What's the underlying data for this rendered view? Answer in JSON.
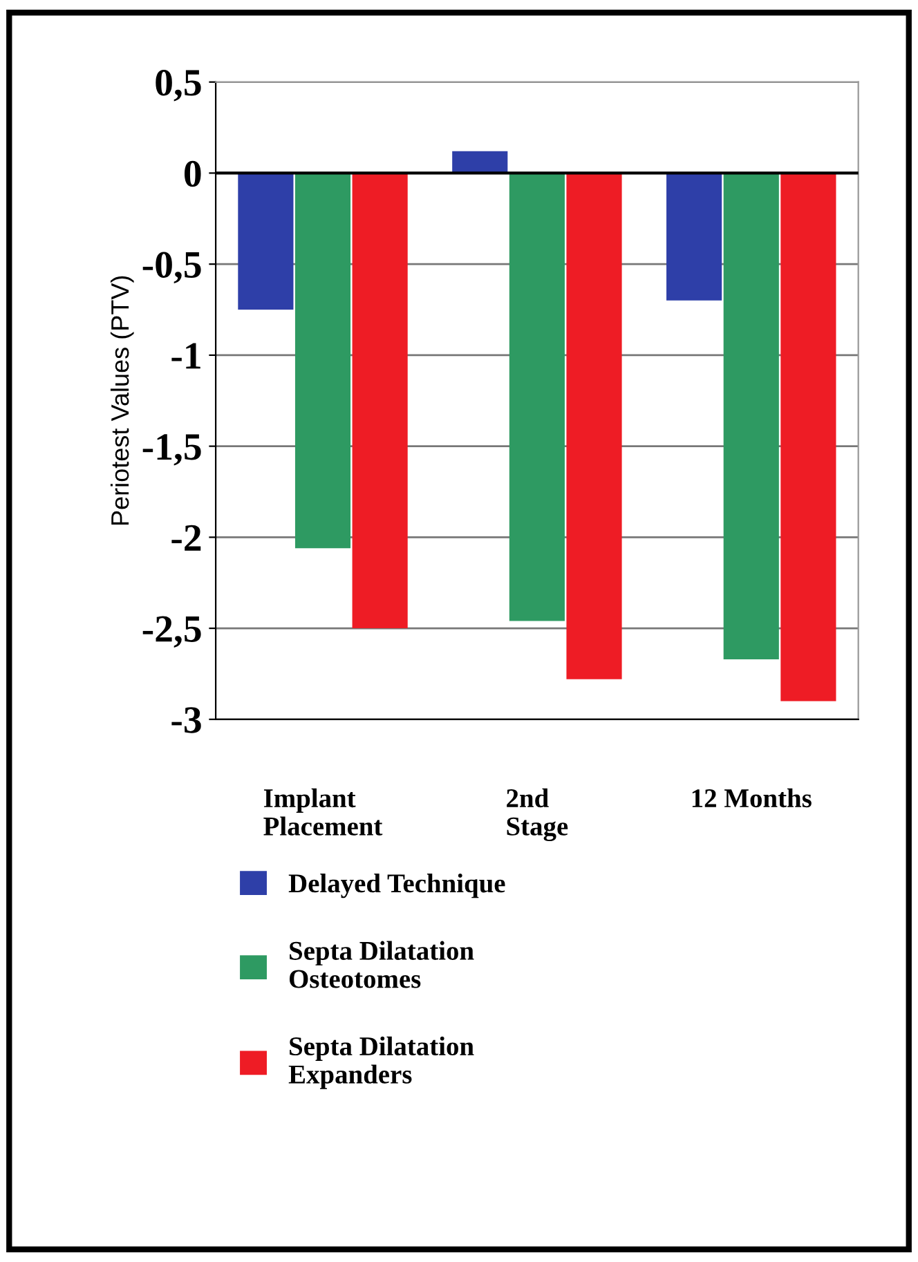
{
  "chart_data": {
    "type": "bar",
    "ylabel": "Periotest Values (PTV)",
    "categories": [
      "Implant\nPlacement",
      "2nd\nStage",
      "12 Months"
    ],
    "series": [
      {
        "name": "Delayed Technique",
        "color": "#2e3fa8",
        "values": [
          -0.75,
          0.12,
          -0.7
        ]
      },
      {
        "name": "Septa Dilatation\nOsteotomes",
        "color": "#2e9a62",
        "values": [
          -2.06,
          -2.46,
          -2.67
        ]
      },
      {
        "name": "Septa Dilatation\nExpanders",
        "color": "#ee1c25",
        "values": [
          -2.5,
          -2.78,
          -2.9
        ]
      }
    ],
    "ylim": [
      -3,
      0.5
    ],
    "yticks": [
      {
        "value": 0.5,
        "label": "0,5"
      },
      0,
      {
        "value": -0.5,
        "label": "-0,5"
      },
      -1,
      {
        "value": -1.5,
        "label": "-1,5"
      },
      -2,
      {
        "value": -2.5,
        "label": "-2,5"
      },
      -3
    ],
    "grid": "y",
    "legend": "bottom"
  }
}
